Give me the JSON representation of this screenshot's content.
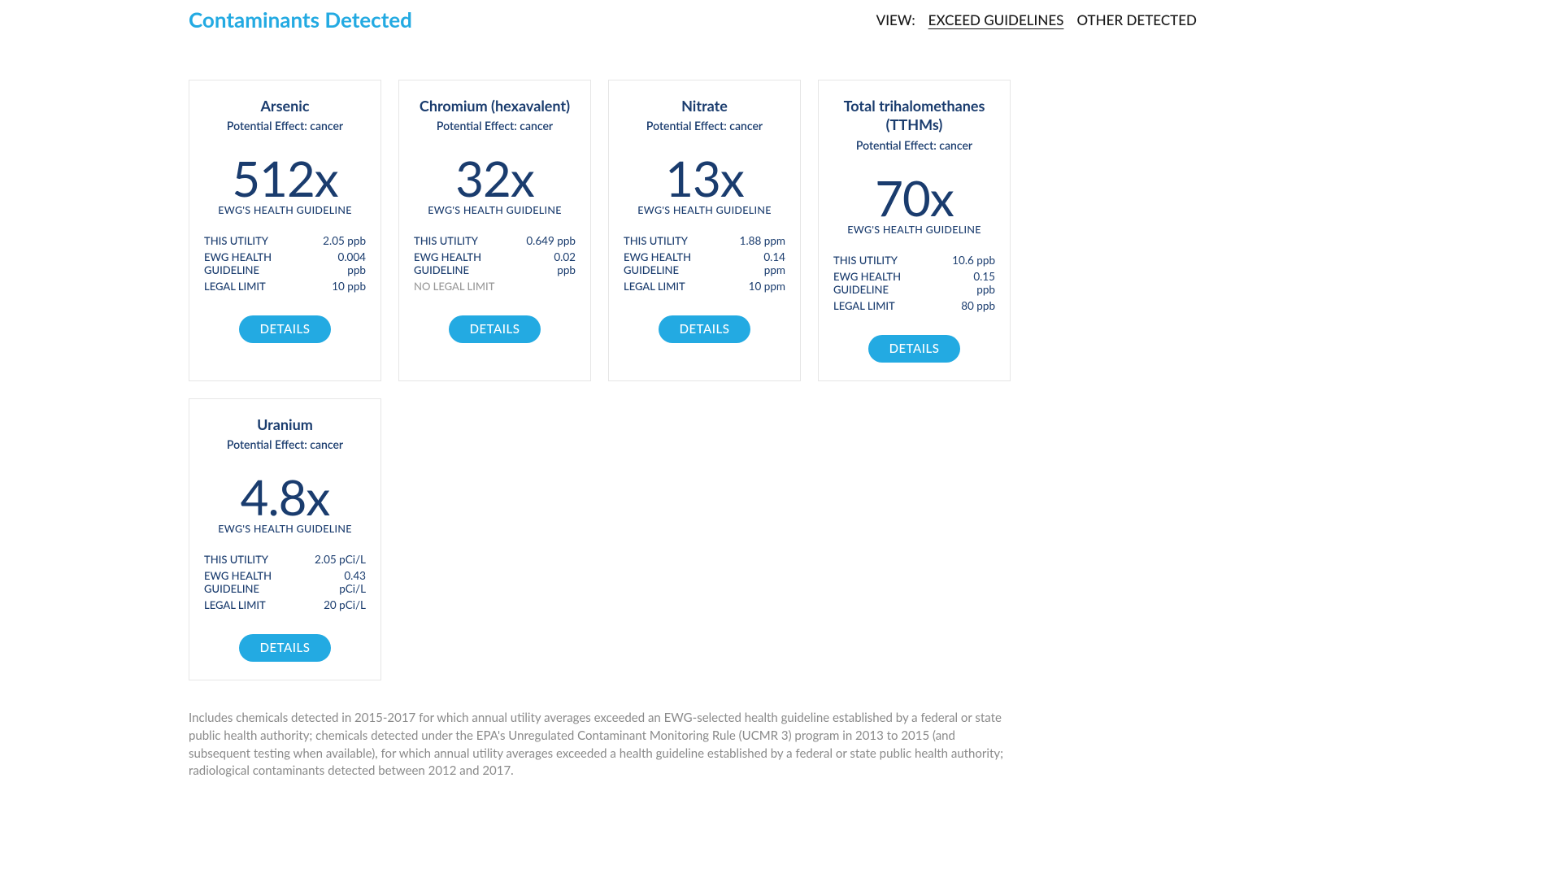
{
  "header": {
    "title": "Contaminants Detected",
    "view_label": "VIEW:",
    "view_options": [
      {
        "label": "EXCEED GUIDELINES",
        "active": true
      },
      {
        "label": "OTHER DETECTED",
        "active": false
      }
    ]
  },
  "labels": {
    "effect_prefix": "Potential Effect: ",
    "guideline": "EWG'S HEALTH GUIDELINE",
    "this_utility": "THIS UTILITY",
    "ewg_guideline": "EWG HEALTH GUIDELINE",
    "legal_limit": "LEGAL LIMIT",
    "no_legal_limit": "NO LEGAL LIMIT",
    "details": "DETAILS"
  },
  "colors": {
    "title": "#23aae2",
    "navy": "#1a3c6e",
    "button": "#23aae2",
    "card_border": "#e6e6e6",
    "muted": "#999999",
    "footnote": "#8a8a8a"
  },
  "contaminants": [
    {
      "name": "Arsenic",
      "effect": "cancer",
      "multiplier": "512x",
      "this_utility": "2.05 ppb",
      "ewg_guideline": "0.004 ppb",
      "legal_limit": "10 ppb",
      "has_legal_limit": true
    },
    {
      "name": "Chromium (hexavalent)",
      "effect": "cancer",
      "multiplier": "32x",
      "this_utility": "0.649 ppb",
      "ewg_guideline": "0.02 ppb",
      "legal_limit": "",
      "has_legal_limit": false
    },
    {
      "name": "Nitrate",
      "effect": "cancer",
      "multiplier": "13x",
      "this_utility": "1.88 ppm",
      "ewg_guideline": "0.14 ppm",
      "legal_limit": "10 ppm",
      "has_legal_limit": true
    },
    {
      "name": "Total trihalomethanes (TTHMs)",
      "effect": "cancer",
      "multiplier": "70x",
      "this_utility": "10.6 ppb",
      "ewg_guideline": "0.15 ppb",
      "legal_limit": "80 ppb",
      "has_legal_limit": true
    },
    {
      "name": "Uranium",
      "effect": "cancer",
      "multiplier": "4.8x",
      "this_utility": "2.05 pCi/L",
      "ewg_guideline": "0.43 pCi/L",
      "legal_limit": "20 pCi/L",
      "has_legal_limit": true
    }
  ],
  "footnote": "Includes chemicals detected in 2015-2017 for which annual utility averages exceeded an EWG-selected health guideline established by a federal or state public health authority; chemicals detected under the EPA's Unregulated Contaminant Monitoring Rule (UCMR 3) program in 2013 to 2015 (and subsequent testing when available), for which annual utility averages exceeded a health guideline established by a federal or state public health authority; radiological contaminants detected between 2012 and 2017."
}
